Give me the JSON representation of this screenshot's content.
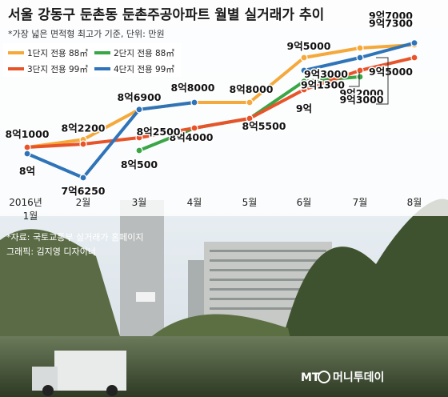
{
  "title": "서울 강동구 둔촌동 둔촌주공아파트 월별 실거래가 추이",
  "subtitle": "*가장 넓은 면적형 최고가 기준, 단위: 만원",
  "source": "*자료: 국토교통부 실거래가 홈페이지",
  "credit": "그래픽: 김지영 디자이너",
  "brand": {
    "mt": "MT",
    "name": "머니투데이"
  },
  "colors": {
    "s1": "#f4a93a",
    "s2": "#3aa646",
    "s3": "#e8542a",
    "s4": "#2f74b8",
    "accent": "#5fa6cf"
  },
  "chart_data": {
    "type": "line",
    "x": [
      "2016년 1월",
      "2월",
      "3월",
      "4월",
      "5월",
      "6월",
      "7월",
      "8월"
    ],
    "ylim": [
      77000,
      98000
    ],
    "series": [
      {
        "name": "1단지 전용 88㎡",
        "color_key": "s1",
        "values": [
          81000,
          82200,
          86900,
          88000,
          88000,
          95000,
          96500,
          97000
        ],
        "labels": [
          "8억1000",
          "8억2200",
          "",
          "",
          "8억8000",
          "9억5000",
          "",
          "9억7000"
        ]
      },
      {
        "name": "2단지 전용 88㎡",
        "color_key": "s2",
        "values": [
          null,
          null,
          80500,
          84000,
          85500,
          91300,
          92000,
          null
        ],
        "labels": [
          "",
          "",
          "8억500",
          "8억4000",
          "8억5500",
          "9억1300",
          "9억2000",
          ""
        ]
      },
      {
        "name": "3단지 전용 99㎡",
        "color_key": "s3",
        "values": [
          81000,
          81500,
          82500,
          84000,
          85500,
          90000,
          93000,
          95000
        ],
        "labels": [
          "",
          "",
          "8억2500",
          "",
          "",
          "9억",
          "9억3000",
          "9억5000"
        ]
      },
      {
        "name": "4단지 전용 99㎡",
        "color_key": "s4",
        "values": [
          80000,
          76250,
          86900,
          88000,
          null,
          93000,
          95000,
          97300
        ],
        "labels": [
          "8억",
          "7억6250",
          "8억6900",
          "8억8000",
          "",
          "9억3000",
          "",
          "9억7300"
        ]
      }
    ]
  }
}
